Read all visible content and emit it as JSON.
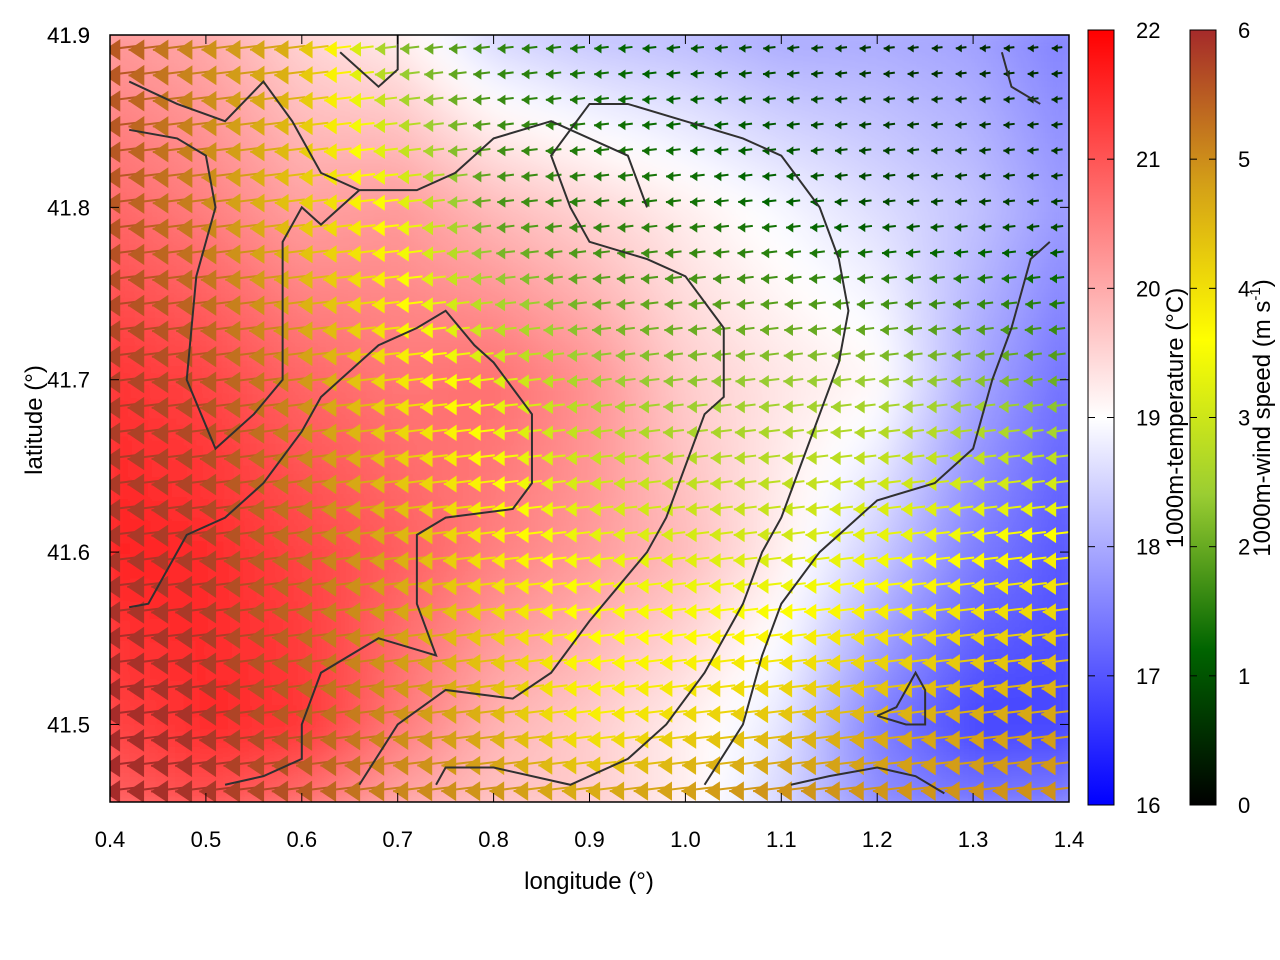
{
  "chart_data": {
    "type": "heatmap",
    "title": "",
    "xlabel": "longitude (°)",
    "ylabel": "latitude (°)",
    "xlim": [
      0.4,
      1.4
    ],
    "ylim": [
      41.455,
      41.9
    ],
    "xticks": [
      "0.4",
      "0.5",
      "0.6",
      "0.7",
      "0.8",
      "0.9",
      "1.0",
      "1.1",
      "1.2",
      "1.3",
      "1.4"
    ],
    "yticks": [
      "41.5",
      "41.6",
      "41.7",
      "41.8",
      "41.9"
    ],
    "temperature_scale": {
      "label": "1000m-temperature (°C)",
      "range": [
        16,
        22
      ],
      "ticks": [
        "16",
        "17",
        "18",
        "19",
        "20",
        "21",
        "22"
      ],
      "colors": [
        "#0000ff",
        "#ffffff",
        "#ff0000"
      ]
    },
    "wind_speed_scale": {
      "label_main": "1000m-wind speed (m s",
      "label_sup": "-1",
      "label_end": ")",
      "range": [
        0,
        6
      ],
      "ticks": [
        "0",
        "1",
        "2",
        "3",
        "4",
        "5",
        "6"
      ],
      "colors": [
        "#000000",
        "#006400",
        "#9acd32",
        "#ffff00",
        "#d4a017",
        "#a52a2a"
      ]
    },
    "temperature_field": {
      "lon": [
        0.4,
        0.5,
        0.6,
        0.7,
        0.8,
        0.9,
        1.0,
        1.1,
        1.2,
        1.3,
        1.4
      ],
      "lat": [
        41.9,
        41.8,
        41.7,
        41.6,
        41.5,
        41.45
      ],
      "values": [
        [
          20.2,
          20.0,
          19.5,
          19.2,
          18.5,
          18.3,
          18.2,
          18.0,
          18.0,
          17.9,
          17.5
        ],
        [
          20.8,
          20.5,
          20.1,
          20.2,
          19.8,
          19.5,
          19.2,
          18.9,
          18.6,
          18.3,
          17.8
        ],
        [
          21.4,
          21.2,
          20.8,
          20.6,
          20.7,
          20.3,
          19.6,
          19.3,
          19.1,
          18.0,
          17.3
        ],
        [
          21.6,
          21.5,
          21.2,
          20.9,
          20.5,
          20.2,
          19.8,
          19.2,
          18.4,
          17.5,
          17.0
        ],
        [
          21.2,
          21.5,
          21.4,
          20.6,
          19.9,
          19.6,
          19.2,
          18.7,
          17.5,
          16.8,
          16.8
        ],
        [
          20.8,
          21.0,
          20.6,
          20.0,
          19.7,
          19.6,
          19.2,
          18.5,
          17.7,
          17.5,
          17.6
        ]
      ]
    },
    "wind_field": {
      "direction": "westward",
      "lon": [
        0.4,
        0.5,
        0.6,
        0.7,
        0.8,
        0.9,
        1.0,
        1.1,
        1.2,
        1.3,
        1.4
      ],
      "lat": [
        41.9,
        41.8,
        41.7,
        41.6,
        41.5,
        41.45
      ],
      "speed": [
        [
          5.6,
          5.0,
          4.6,
          2.2,
          1.6,
          1.3,
          1.0,
          0.8,
          0.6,
          0.5,
          0.5
        ],
        [
          5.6,
          5.1,
          4.3,
          3.5,
          1.8,
          1.5,
          1.4,
          1.2,
          0.9,
          0.8,
          0.7
        ],
        [
          5.8,
          5.6,
          5.0,
          4.0,
          3.3,
          2.5,
          2.3,
          2.4,
          2.4,
          2.3,
          2.0
        ],
        [
          5.9,
          5.8,
          5.3,
          4.7,
          3.9,
          3.4,
          3.2,
          3.1,
          3.4,
          3.6,
          3.8
        ],
        [
          6.0,
          5.9,
          5.5,
          5.0,
          4.6,
          3.8,
          4.1,
          4.4,
          4.6,
          4.7,
          4.8
        ],
        [
          6.0,
          5.9,
          5.6,
          5.1,
          5.0,
          4.9,
          5.0,
          5.1,
          5.0,
          5.0,
          5.0
        ]
      ]
    },
    "contours": [
      {
        "color": "#303030",
        "points": [
          [
            0.42,
            41.873
          ],
          [
            0.47,
            41.86
          ],
          [
            0.52,
            41.85
          ],
          [
            0.56,
            41.873
          ],
          [
            0.59,
            41.85
          ],
          [
            0.62,
            41.82
          ],
          [
            0.66,
            41.81
          ],
          [
            0.72,
            41.81
          ],
          [
            0.76,
            41.82
          ],
          [
            0.8,
            41.84
          ],
          [
            0.86,
            41.85
          ],
          [
            0.94,
            41.83
          ],
          [
            0.96,
            41.8
          ]
        ]
      },
      {
        "color": "#303030",
        "points": [
          [
            0.42,
            41.845
          ],
          [
            0.47,
            41.84
          ],
          [
            0.5,
            41.83
          ],
          [
            0.51,
            41.8
          ],
          [
            0.49,
            41.76
          ],
          [
            0.48,
            41.7
          ],
          [
            0.51,
            41.66
          ],
          [
            0.55,
            41.68
          ],
          [
            0.58,
            41.7
          ],
          [
            0.58,
            41.78
          ],
          [
            0.6,
            41.8
          ],
          [
            0.62,
            41.79
          ],
          [
            0.66,
            41.81
          ]
        ]
      },
      {
        "color": "#303030",
        "points": [
          [
            0.42,
            41.568
          ],
          [
            0.44,
            41.57
          ],
          [
            0.48,
            41.61
          ],
          [
            0.52,
            41.62
          ],
          [
            0.56,
            41.64
          ],
          [
            0.6,
            41.67
          ],
          [
            0.62,
            41.69
          ],
          [
            0.68,
            41.72
          ],
          [
            0.72,
            41.73
          ],
          [
            0.75,
            41.74
          ],
          [
            0.78,
            41.72
          ],
          [
            0.8,
            41.71
          ],
          [
            0.84,
            41.68
          ],
          [
            0.84,
            41.64
          ],
          [
            0.82,
            41.625
          ],
          [
            0.75,
            41.62
          ],
          [
            0.72,
            41.61
          ],
          [
            0.72,
            41.57
          ],
          [
            0.74,
            41.54
          ],
          [
            0.68,
            41.55
          ],
          [
            0.62,
            41.53
          ],
          [
            0.6,
            41.5
          ],
          [
            0.6,
            41.48
          ],
          [
            0.56,
            41.47
          ],
          [
            0.52,
            41.465
          ]
        ]
      },
      {
        "color": "#303030",
        "points": [
          [
            0.66,
            41.465
          ],
          [
            0.7,
            41.5
          ],
          [
            0.75,
            41.52
          ],
          [
            0.82,
            41.515
          ],
          [
            0.86,
            41.53
          ],
          [
            0.9,
            41.56
          ],
          [
            0.93,
            41.58
          ],
          [
            0.96,
            41.6
          ],
          [
            0.98,
            41.62
          ],
          [
            1.0,
            41.65
          ],
          [
            1.02,
            41.68
          ],
          [
            1.04,
            41.69
          ],
          [
            1.04,
            41.73
          ],
          [
            1.0,
            41.76
          ],
          [
            0.96,
            41.77
          ],
          [
            0.9,
            41.78
          ],
          [
            0.88,
            41.8
          ],
          [
            0.86,
            41.83
          ],
          [
            0.9,
            41.86
          ],
          [
            0.94,
            41.86
          ],
          [
            1.0,
            41.85
          ],
          [
            1.06,
            41.84
          ],
          [
            1.1,
            41.83
          ],
          [
            1.14,
            41.8
          ],
          [
            1.16,
            41.77
          ],
          [
            1.17,
            41.74
          ],
          [
            1.16,
            41.71
          ],
          [
            1.14,
            41.68
          ],
          [
            1.12,
            41.65
          ],
          [
            1.1,
            41.62
          ],
          [
            1.08,
            41.6
          ],
          [
            1.06,
            41.57
          ],
          [
            1.02,
            41.53
          ],
          [
            0.98,
            41.5
          ],
          [
            0.94,
            41.48
          ],
          [
            0.88,
            41.465
          ],
          [
            0.8,
            41.475
          ],
          [
            0.75,
            41.475
          ],
          [
            0.74,
            41.465
          ]
        ]
      },
      {
        "color": "#303030",
        "points": [
          [
            1.02,
            41.465
          ],
          [
            1.06,
            41.5
          ],
          [
            1.08,
            41.54
          ],
          [
            1.1,
            41.57
          ],
          [
            1.14,
            41.6
          ],
          [
            1.2,
            41.63
          ],
          [
            1.26,
            41.64
          ],
          [
            1.3,
            41.66
          ],
          [
            1.32,
            41.7
          ],
          [
            1.34,
            41.73
          ],
          [
            1.36,
            41.77
          ],
          [
            1.38,
            41.78
          ]
        ]
      },
      {
        "color": "#303030",
        "points": [
          [
            1.11,
            41.465
          ],
          [
            1.15,
            41.47
          ],
          [
            1.2,
            41.475
          ],
          [
            1.24,
            41.47
          ],
          [
            1.27,
            41.46
          ]
        ]
      },
      {
        "color": "#303030",
        "points": [
          [
            1.2,
            41.505
          ],
          [
            1.22,
            41.51
          ],
          [
            1.24,
            41.53
          ],
          [
            1.25,
            41.52
          ],
          [
            1.25,
            41.5
          ],
          [
            1.23,
            41.5
          ],
          [
            1.2,
            41.505
          ]
        ]
      },
      {
        "color": "#303030",
        "points": [
          [
            1.33,
            41.89
          ],
          [
            1.34,
            41.87
          ],
          [
            1.37,
            41.86
          ]
        ]
      },
      {
        "color": "#303030",
        "points": [
          [
            0.64,
            41.89
          ],
          [
            0.68,
            41.87
          ],
          [
            0.7,
            41.88
          ],
          [
            0.7,
            41.9
          ]
        ]
      }
    ]
  }
}
